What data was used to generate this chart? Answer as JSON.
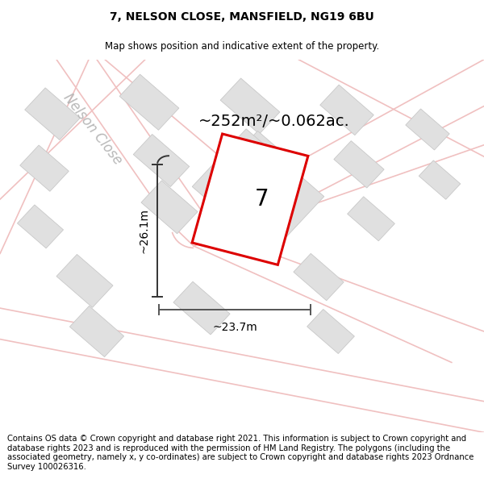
{
  "title": "7, NELSON CLOSE, MANSFIELD, NG19 6BU",
  "subtitle": "Map shows position and indicative extent of the property.",
  "area_text": "~252m²/~0.062ac.",
  "label_7": "7",
  "dim_width": "~23.7m",
  "dim_height": "~26.1m",
  "footer": "Contains OS data © Crown copyright and database right 2021. This information is subject to Crown copyright and database rights 2023 and is reproduced with the permission of HM Land Registry. The polygons (including the associated geometry, namely x, y co-ordinates) are subject to Crown copyright and database rights 2023 Ordnance Survey 100026316.",
  "background_color": "#ffffff",
  "map_bg": "#f9f6f6",
  "road_line_color": "#f0c0c0",
  "building_fill": "#e0e0e0",
  "building_edge": "#c8c8c8",
  "property_fill": "#ffffff",
  "property_edge": "#dd0000",
  "road_text_color": "#b8b8b8",
  "street_label": "Nelson Close",
  "title_fontsize": 10,
  "subtitle_fontsize": 8.5,
  "area_fontsize": 14,
  "label_fontsize": 20,
  "dim_fontsize": 10,
  "footer_fontsize": 7.2,
  "street_fontsize": 12
}
